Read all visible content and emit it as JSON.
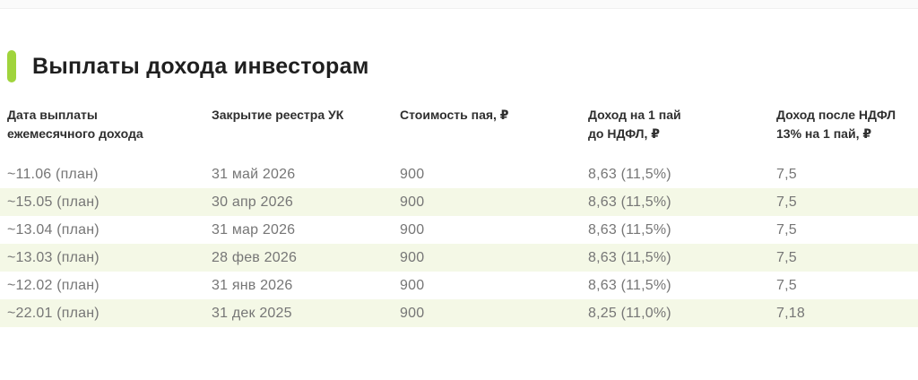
{
  "theme": {
    "accent_color": "#a0d43c",
    "stripe_color": "#f4f8e6",
    "header_text_color": "#2f2f2f",
    "cell_text_color": "#767676"
  },
  "section": {
    "title": "Выплаты дохода инвесторам"
  },
  "table": {
    "columns": [
      {
        "id": "payout-date",
        "label": "Дата выплаты\nежемесячного дохода"
      },
      {
        "id": "registry-close",
        "label": "Закрытие реестра УК"
      },
      {
        "id": "unit-price",
        "label": "Стоимость пая, ₽"
      },
      {
        "id": "income-before-tax",
        "label": "Доход на 1 пай\nдо НДФЛ, ₽"
      },
      {
        "id": "income-after-tax",
        "label": "Доход после НДФЛ\n13% на 1 пай, ₽"
      }
    ],
    "rows": [
      {
        "cells": [
          "~11.06 (план)",
          "31 май 2026",
          "900",
          "8,63 (11,5%)",
          "7,5"
        ],
        "striped": false
      },
      {
        "cells": [
          "~15.05 (план)",
          "30 апр 2026",
          "900",
          "8,63 (11,5%)",
          "7,5"
        ],
        "striped": true
      },
      {
        "cells": [
          "~13.04 (план)",
          "31 мар 2026",
          "900",
          "8,63 (11,5%)",
          "7,5"
        ],
        "striped": false
      },
      {
        "cells": [
          "~13.03 (план)",
          "28 фев 2026",
          "900",
          "8,63 (11,5%)",
          "7,5"
        ],
        "striped": true
      },
      {
        "cells": [
          "~12.02 (план)",
          "31 янв 2026",
          "900",
          "8,63 (11,5%)",
          "7,5"
        ],
        "striped": false
      },
      {
        "cells": [
          "~22.01 (план)",
          "31 дек 2025",
          "900",
          "8,25 (11,0%)",
          "7,18"
        ],
        "striped": true
      }
    ]
  }
}
